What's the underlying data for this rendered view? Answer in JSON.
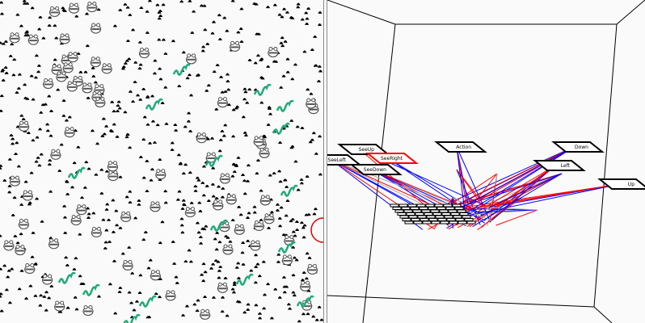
{
  "world_view": {
    "entities": [
      "food-pellet",
      "frog-agent",
      "snake-predator"
    ],
    "colors": {
      "food": "#000000",
      "frog": "#555555",
      "snake": "#22aa77",
      "marker": "#dd0000"
    }
  },
  "network_view": {
    "nodes": [
      {
        "label": "SeeUp"
      },
      {
        "label": "SeeLeft"
      },
      {
        "label": "SeeRight"
      },
      {
        "label": "SeeDown"
      },
      {
        "label": "Action"
      },
      {
        "label": "Down"
      },
      {
        "label": "Left"
      },
      {
        "label": "Up"
      }
    ],
    "colors": {
      "excitatory": "#ff0000",
      "inhibitory": "#0000ff",
      "neutral": "#aaaaaa"
    }
  }
}
